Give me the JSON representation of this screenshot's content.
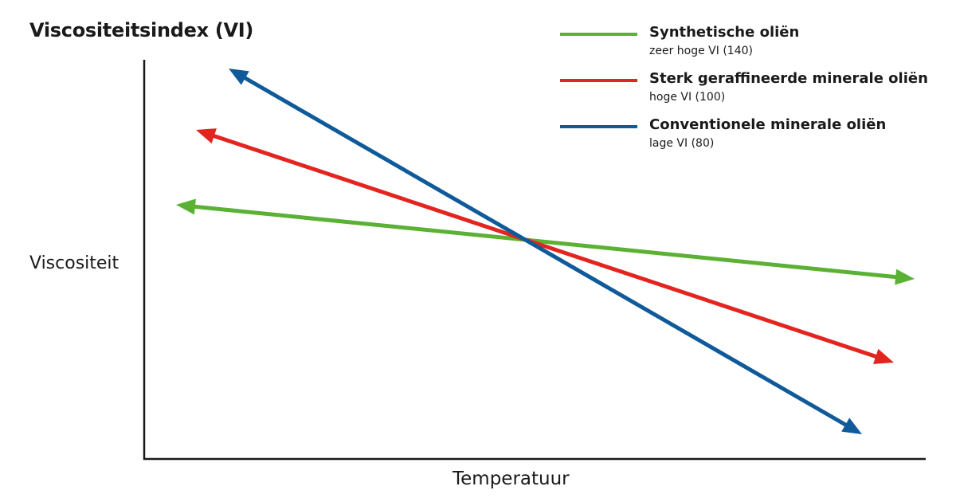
{
  "chart_data": {
    "type": "line",
    "title": "Viscositeitsindex (VI)",
    "xlabel": "Temperatuur",
    "ylabel": "Viscositeit",
    "grid": false,
    "legend_placement": "top-right",
    "series": [
      {
        "name": "Synthetische oliën",
        "subtitle": "zeer hoge VI (140)",
        "vi": 140,
        "color": "#5bb134"
      },
      {
        "name": "Sterk geraffineerde minerale oliën",
        "subtitle": "hoge VI (100)",
        "vi": 100,
        "color": "#e0261f"
      },
      {
        "name": "Conventionele minerale oliën",
        "subtitle": "lage VI (80)",
        "vi": 80,
        "color": "#0e5a9a"
      }
    ]
  }
}
